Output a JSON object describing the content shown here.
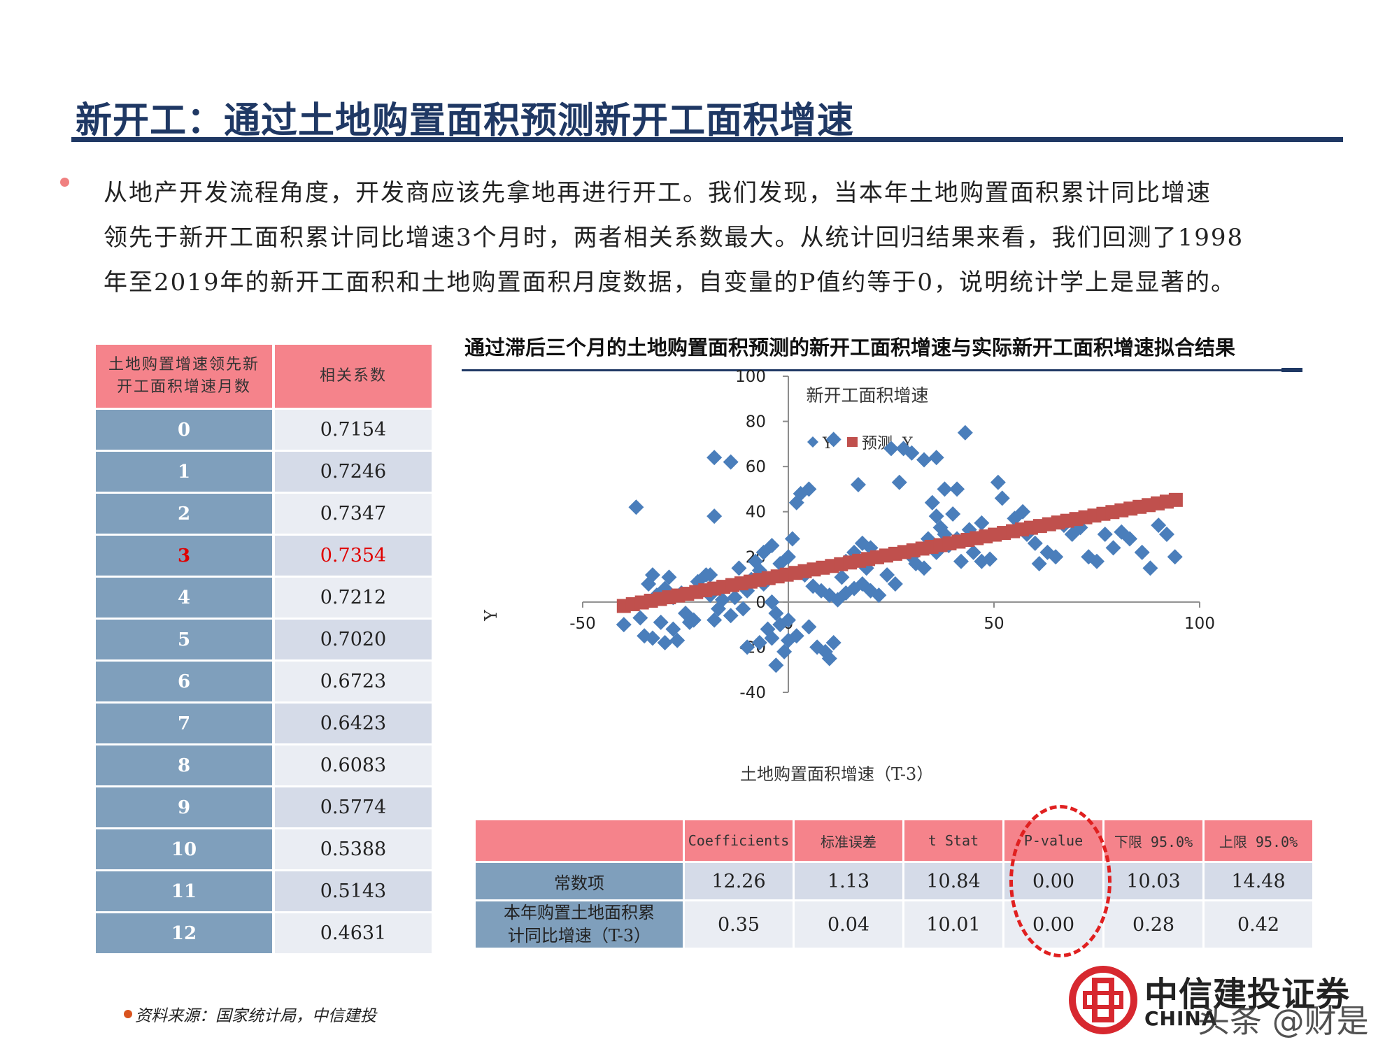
{
  "title": "新开工：通过土地购置面积预测新开工面积增速",
  "paragraph": {
    "line1": "从地产开发流程角度，开发商应该先拿地再进行开工。我们发现，当本年土地购置面积累计同比增速",
    "line2": "领先于新开工面积累计同比增速3个月时，两者相关系数最大。从统计回归结果来看，我们回测了1998",
    "line3": "年至2019年的新开工面积和土地购置面积月度数据，自变量的P值约等于0，说明统计学上是显著的。"
  },
  "left_table": {
    "header": [
      "土地购置增速领先新开工面积增速月数",
      "相关系数"
    ],
    "header_line1": "土地购置增速领先新",
    "header_line2": "开工面积增速月数",
    "rows": [
      {
        "lead": "0",
        "corr": "0.7154"
      },
      {
        "lead": "1",
        "corr": "0.7246"
      },
      {
        "lead": "2",
        "corr": "0.7347"
      },
      {
        "lead": "3",
        "corr": "0.7354",
        "highlight": true
      },
      {
        "lead": "4",
        "corr": "0.7212"
      },
      {
        "lead": "5",
        "corr": "0.7020"
      },
      {
        "lead": "6",
        "corr": "0.6723"
      },
      {
        "lead": "7",
        "corr": "0.6423"
      },
      {
        "lead": "8",
        "corr": "0.6083"
      },
      {
        "lead": "9",
        "corr": "0.5774"
      },
      {
        "lead": "10",
        "corr": "0.5388"
      },
      {
        "lead": "11",
        "corr": "0.5143"
      },
      {
        "lead": "12",
        "corr": "0.4631"
      }
    ]
  },
  "chart_panel_title": "通过滞后三个月的土地购置面积预测的新开工面积增速与实际新开工面积增速拟合结果",
  "chart_data": {
    "type": "scatter",
    "title": "新开工面积增速",
    "xlabel": "土地购置面积增速（T-3）",
    "ylabel": "Y",
    "xlim": [
      -50,
      100
    ],
    "ylim": [
      -40,
      100
    ],
    "xticks": [
      -50,
      0,
      50,
      100
    ],
    "yticks": [
      -40,
      -20,
      0,
      20,
      40,
      60,
      80,
      100
    ],
    "legend": [
      "Y",
      "预测  Y"
    ],
    "legend_position": "top",
    "colors": {
      "Y": "#4a7ebb",
      "predicted": "#c0504d"
    },
    "regression": {
      "intercept": 12.26,
      "slope": 0.35
    },
    "series": [
      {
        "name": "Y",
        "marker": "diamond",
        "points": [
          [
            -40,
            -10
          ],
          [
            -35,
            -15
          ],
          [
            -33,
            -16
          ],
          [
            -30,
            -18
          ],
          [
            -28,
            -12
          ],
          [
            -27,
            -17
          ],
          [
            -36,
            -7
          ],
          [
            -31,
            -9
          ],
          [
            -25,
            -5
          ],
          [
            -24,
            -9
          ],
          [
            -32,
            3
          ],
          [
            -30,
            6
          ],
          [
            -33,
            12
          ],
          [
            -29,
            11
          ],
          [
            -34,
            8
          ],
          [
            -28,
            2
          ],
          [
            -26,
            4
          ],
          [
            -22,
            9
          ],
          [
            -20,
            12
          ],
          [
            -19,
            3
          ],
          [
            -17,
            -3
          ],
          [
            -16,
            1
          ],
          [
            -23,
            -8
          ],
          [
            -18,
            -8
          ],
          [
            -14,
            -6
          ],
          [
            -11,
            -3
          ],
          [
            -13,
            2
          ],
          [
            -10,
            5
          ],
          [
            -9,
            10
          ],
          [
            -7,
            14
          ],
          [
            -6,
            8
          ],
          [
            -4,
            0
          ],
          [
            -3,
            -5
          ],
          [
            -5,
            -12
          ],
          [
            -7,
            -18
          ],
          [
            -10,
            -20
          ],
          [
            -4,
            -16
          ],
          [
            -2,
            -10
          ],
          [
            0,
            -8
          ],
          [
            2,
            -15
          ],
          [
            -1,
            -22
          ],
          [
            -3,
            -28
          ],
          [
            0,
            -17
          ],
          [
            5,
            -11
          ],
          [
            7,
            -20
          ],
          [
            9,
            -22
          ],
          [
            10,
            -25
          ],
          [
            11,
            -18
          ],
          [
            -18,
            64
          ],
          [
            -14,
            62
          ],
          [
            -37,
            42
          ],
          [
            -18,
            38
          ],
          [
            -19,
            12
          ],
          [
            -12,
            15
          ],
          [
            -8,
            18
          ],
          [
            -6,
            22
          ],
          [
            -4,
            25
          ],
          [
            -2,
            17
          ],
          [
            0,
            20
          ],
          [
            1,
            28
          ],
          [
            2,
            44
          ],
          [
            3,
            48
          ],
          [
            5,
            50
          ],
          [
            4,
            12
          ],
          [
            6,
            7
          ],
          [
            8,
            5
          ],
          [
            10,
            3
          ],
          [
            12,
            1
          ],
          [
            14,
            4
          ],
          [
            16,
            6
          ],
          [
            18,
            8
          ],
          [
            14,
            18
          ],
          [
            16,
            22
          ],
          [
            18,
            26
          ],
          [
            20,
            24
          ],
          [
            19,
            15
          ],
          [
            13,
            11
          ],
          [
            11,
            72
          ],
          [
            17,
            52
          ],
          [
            25,
            68
          ],
          [
            28,
            68
          ],
          [
            30,
            66
          ],
          [
            33,
            63
          ],
          [
            36,
            64
          ],
          [
            27,
            53
          ],
          [
            38,
            50
          ],
          [
            41,
            50
          ],
          [
            43,
            75
          ],
          [
            35,
            44
          ],
          [
            36,
            38
          ],
          [
            40,
            39
          ],
          [
            38,
            30
          ],
          [
            41,
            28
          ],
          [
            44,
            32
          ],
          [
            47,
            35
          ],
          [
            45,
            22
          ],
          [
            47,
            18
          ],
          [
            49,
            19
          ],
          [
            52,
            46
          ],
          [
            51,
            53
          ],
          [
            55,
            37
          ],
          [
            57,
            40
          ],
          [
            58,
            30
          ],
          [
            60,
            26
          ],
          [
            61,
            17
          ],
          [
            63,
            22
          ],
          [
            65,
            20
          ],
          [
            67,
            34
          ],
          [
            69,
            30
          ],
          [
            71,
            33
          ],
          [
            73,
            20
          ],
          [
            75,
            18
          ],
          [
            77,
            30
          ],
          [
            79,
            24
          ],
          [
            81,
            31
          ],
          [
            83,
            28
          ],
          [
            86,
            22
          ],
          [
            88,
            15
          ],
          [
            90,
            34
          ],
          [
            92,
            30
          ],
          [
            94,
            20
          ],
          [
            30,
            20
          ],
          [
            33,
            15
          ],
          [
            36,
            22
          ],
          [
            39,
            25
          ],
          [
            42,
            18
          ],
          [
            24,
            12
          ],
          [
            22,
            3
          ],
          [
            20,
            5
          ],
          [
            26,
            8
          ],
          [
            31,
            17
          ],
          [
            34,
            28
          ],
          [
            37,
            33
          ]
        ]
      },
      {
        "name": "预测  Y",
        "marker": "square",
        "line": true
      }
    ]
  },
  "regression_table": {
    "columns": [
      "",
      "Coefficients",
      "标准误差",
      "t Stat",
      "P-value",
      "下限 95.0%",
      "上限 95.0%"
    ],
    "rows": [
      {
        "label": "常数项",
        "values": [
          "12.26",
          "1.13",
          "10.84",
          "0.00",
          "10.03",
          "14.48"
        ]
      },
      {
        "label_line1": "本年购置土地面积累",
        "label_line2": "计同比增速（T-3）",
        "values": [
          "0.35",
          "0.04",
          "10.01",
          "0.00",
          "0.28",
          "0.42"
        ]
      }
    ]
  },
  "source": "资料来源：国家统计局，中信建投",
  "logo": {
    "cn": "中信建投证券",
    "en": "CHINA"
  },
  "watermark": "头条 @财是"
}
